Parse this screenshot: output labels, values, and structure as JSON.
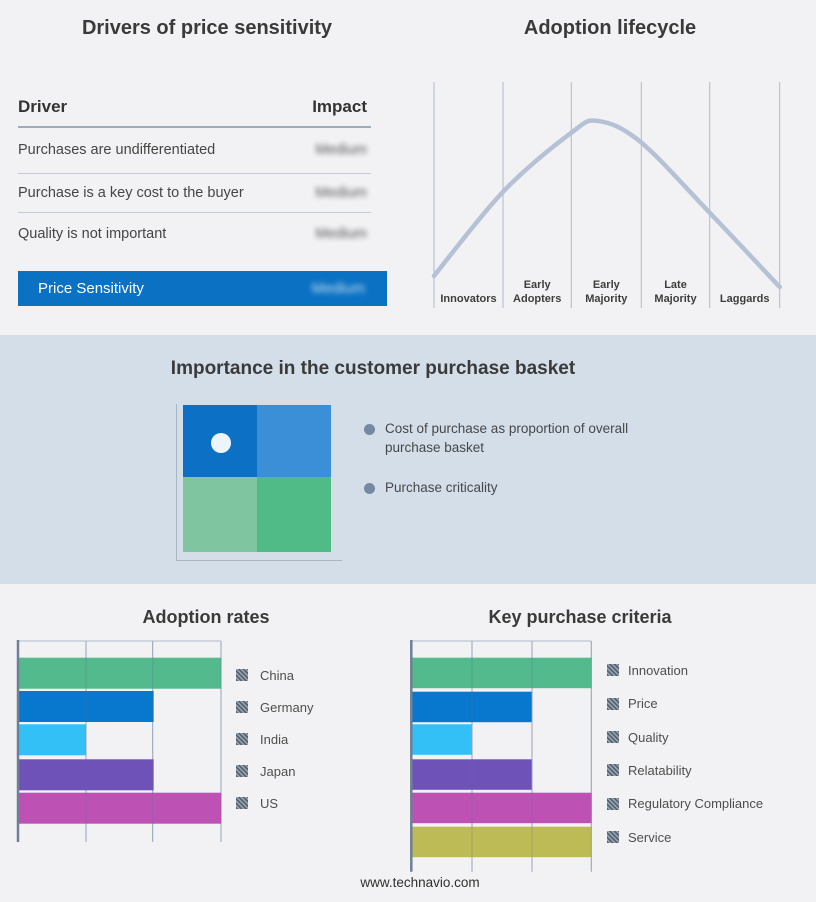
{
  "page": {
    "background": "#F2F2F4",
    "band_background": "#D4DEE9"
  },
  "drivers_panel": {
    "title": "Drivers of price sensitivity",
    "columns": {
      "driver": "Driver",
      "impact": "Impact"
    },
    "rows": [
      {
        "driver": "Purchases are undifferentiated",
        "impact": "Medium"
      },
      {
        "driver": "Purchase is a key cost to the buyer",
        "impact": "Medium"
      },
      {
        "driver": "Quality is not important",
        "impact": "Medium"
      }
    ],
    "highlight_row": {
      "label": "Price Sensitivity",
      "impact": "Medium",
      "color": "#0A71C3"
    },
    "impact_values_blurred": true
  },
  "lifecycle_panel": {
    "title": "Adoption lifecycle"
  },
  "basket_band": {
    "title": "Importance in the customer purchase basket",
    "bullets": [
      "Cost of purchase as proportion of overall purchase basket",
      "Purchase criticality"
    ],
    "quadrant": {
      "top_left": "#0C70C4",
      "top_right": "#3B8FD7",
      "bottom_left": "#7FC5A0",
      "bottom_right": "#50BB86",
      "dot": "#EDF5FB"
    }
  },
  "adoption_rates_panel": {
    "title": "Adoption rates"
  },
  "key_purchase_criteria_panel": {
    "title": "Key purchase criteria"
  },
  "footer": {
    "url": "www.technavio.com"
  },
  "chart_data": [
    {
      "id": "adoption-lifecycle",
      "type": "line",
      "subtype": "bell-curve",
      "title": "Adoption lifecycle",
      "categories": [
        "Innovators",
        "Early Adopters",
        "Early Majority",
        "Late Majority",
        "Laggards"
      ],
      "curve_points_norm": [
        [
          0,
          0.862
        ],
        [
          0.199,
          0.489
        ],
        [
          0.396,
          0.227
        ],
        [
          0.474,
          0.173
        ],
        [
          0.598,
          0.267
        ],
        [
          0.798,
          0.582
        ],
        [
          1,
          0.911
        ]
      ],
      "line_color": "#B5C1D4",
      "gridline_count": 6,
      "grid": true,
      "legend": "none",
      "axis_labels_position": "bottom"
    },
    {
      "id": "adoption-rates",
      "type": "bar",
      "orientation": "horizontal",
      "title": "Adoption rates",
      "categories": [
        "China",
        "Germany",
        "India",
        "Japan",
        "US"
      ],
      "values": [
        3,
        2,
        1,
        2,
        3
      ],
      "xlim": [
        0,
        3
      ],
      "colors": [
        "#52BA8D",
        "#0878CE",
        "#33C0F7",
        "#6F52B7",
        "#BE52B4"
      ],
      "grid": true,
      "legend_position": "right"
    },
    {
      "id": "key-purchase-criteria",
      "type": "bar",
      "orientation": "horizontal",
      "title": "Key purchase criteria",
      "categories": [
        "Innovation",
        "Price",
        "Quality",
        "Relatability",
        "Regulatory Compliance",
        "Service"
      ],
      "values": [
        3,
        2,
        1,
        2,
        3,
        3
      ],
      "xlim": [
        0,
        3
      ],
      "colors": [
        "#52BA8D",
        "#0878CE",
        "#33C0F7",
        "#6F52B7",
        "#BE52B4",
        "#BDBB55"
      ],
      "grid": true,
      "legend_position": "right"
    }
  ],
  "style": {
    "gridline_color": "#AFB9CD",
    "axis_color": "#6F8096",
    "title_color": "#3A3A3A"
  }
}
